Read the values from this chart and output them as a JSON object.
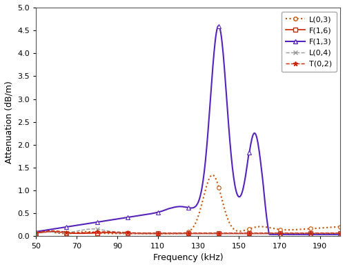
{
  "title": "",
  "xlabel": "Frequency (kHz)",
  "ylabel": "Attenuation (dB/m)",
  "xlim": [
    50,
    200
  ],
  "ylim": [
    0,
    5
  ],
  "xticks": [
    50,
    70,
    90,
    110,
    130,
    150,
    170,
    190
  ],
  "yticks": [
    0,
    0.5,
    1,
    1.5,
    2,
    2.5,
    3,
    3.5,
    4,
    4.5,
    5
  ],
  "series": {
    "L03": {
      "label": "L(0,3)",
      "color": "#c85000",
      "linestyle": ":",
      "marker": "o",
      "markersize": 4,
      "linewidth": 1.5,
      "markerfacecolor": "white"
    },
    "F16": {
      "label": "F(1,6)",
      "color": "#cc2200",
      "linestyle": "-",
      "marker": "s",
      "markersize": 4,
      "linewidth": 1.2,
      "markerfacecolor": "white"
    },
    "F13": {
      "label": "F(1,3)",
      "color": "#5522bb",
      "linestyle": "-",
      "marker": "^",
      "markersize": 5,
      "linewidth": 1.5,
      "markerfacecolor": "white"
    },
    "L04": {
      "label": "L(0,4)",
      "color": "#999999",
      "linestyle": "--",
      "marker": "x",
      "markersize": 5,
      "linewidth": 1.0,
      "markerfacecolor": "#999999"
    },
    "T02": {
      "label": "T(0,2)",
      "color": "#cc2200",
      "linestyle": "--",
      "marker": "*",
      "markersize": 5,
      "linewidth": 1.0,
      "markerfacecolor": "#cc2200"
    }
  }
}
